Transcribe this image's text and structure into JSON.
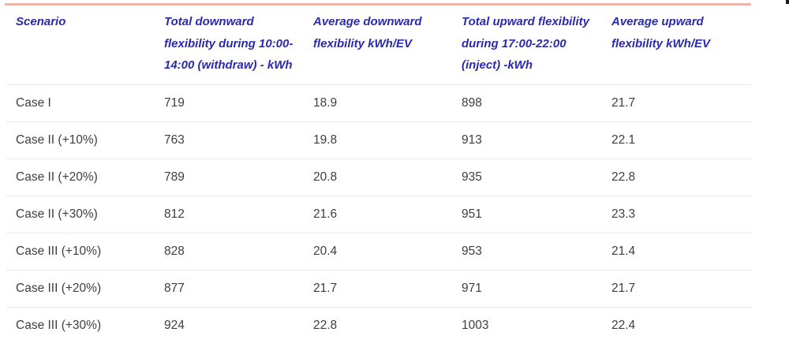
{
  "colors": {
    "accent_line": "#f0b3ab",
    "header_text": "#2a2aad",
    "body_text": "#3e3e3e",
    "separator": "#eaeaea",
    "background": "#ffffff"
  },
  "table": {
    "columns": [
      {
        "label": "Scenario"
      },
      {
        "label": "Total downward flexibility during 10:00-14:00 (withdraw) - kWh"
      },
      {
        "label": "Average downward flexibility kWh/EV"
      },
      {
        "label": "Total upward flexibility during 17:00-22:00 (inject) -kWh"
      },
      {
        "label": "Average upward flexibility kWh/EV"
      }
    ],
    "rows": [
      {
        "scenario": "Case I",
        "values": [
          "719",
          "18.9",
          "898",
          "21.7"
        ]
      },
      {
        "scenario": "Case II (+10%)",
        "values": [
          "763",
          "19.8",
          "913",
          "22.1"
        ]
      },
      {
        "scenario": "Case II (+20%)",
        "values": [
          "789",
          "20.8",
          "935",
          "22.8"
        ]
      },
      {
        "scenario": "Case II (+30%)",
        "values": [
          "812",
          "21.6",
          "951",
          "23.3"
        ]
      },
      {
        "scenario": "Case III (+10%)",
        "values": [
          "828",
          "20.4",
          "953",
          "21.4"
        ]
      },
      {
        "scenario": "Case III (+20%)",
        "values": [
          "877",
          "21.7",
          "971",
          "21.7"
        ]
      },
      {
        "scenario": "Case III (+30%)",
        "values": [
          "924",
          "22.8",
          "1003",
          "22.4"
        ]
      }
    ]
  }
}
